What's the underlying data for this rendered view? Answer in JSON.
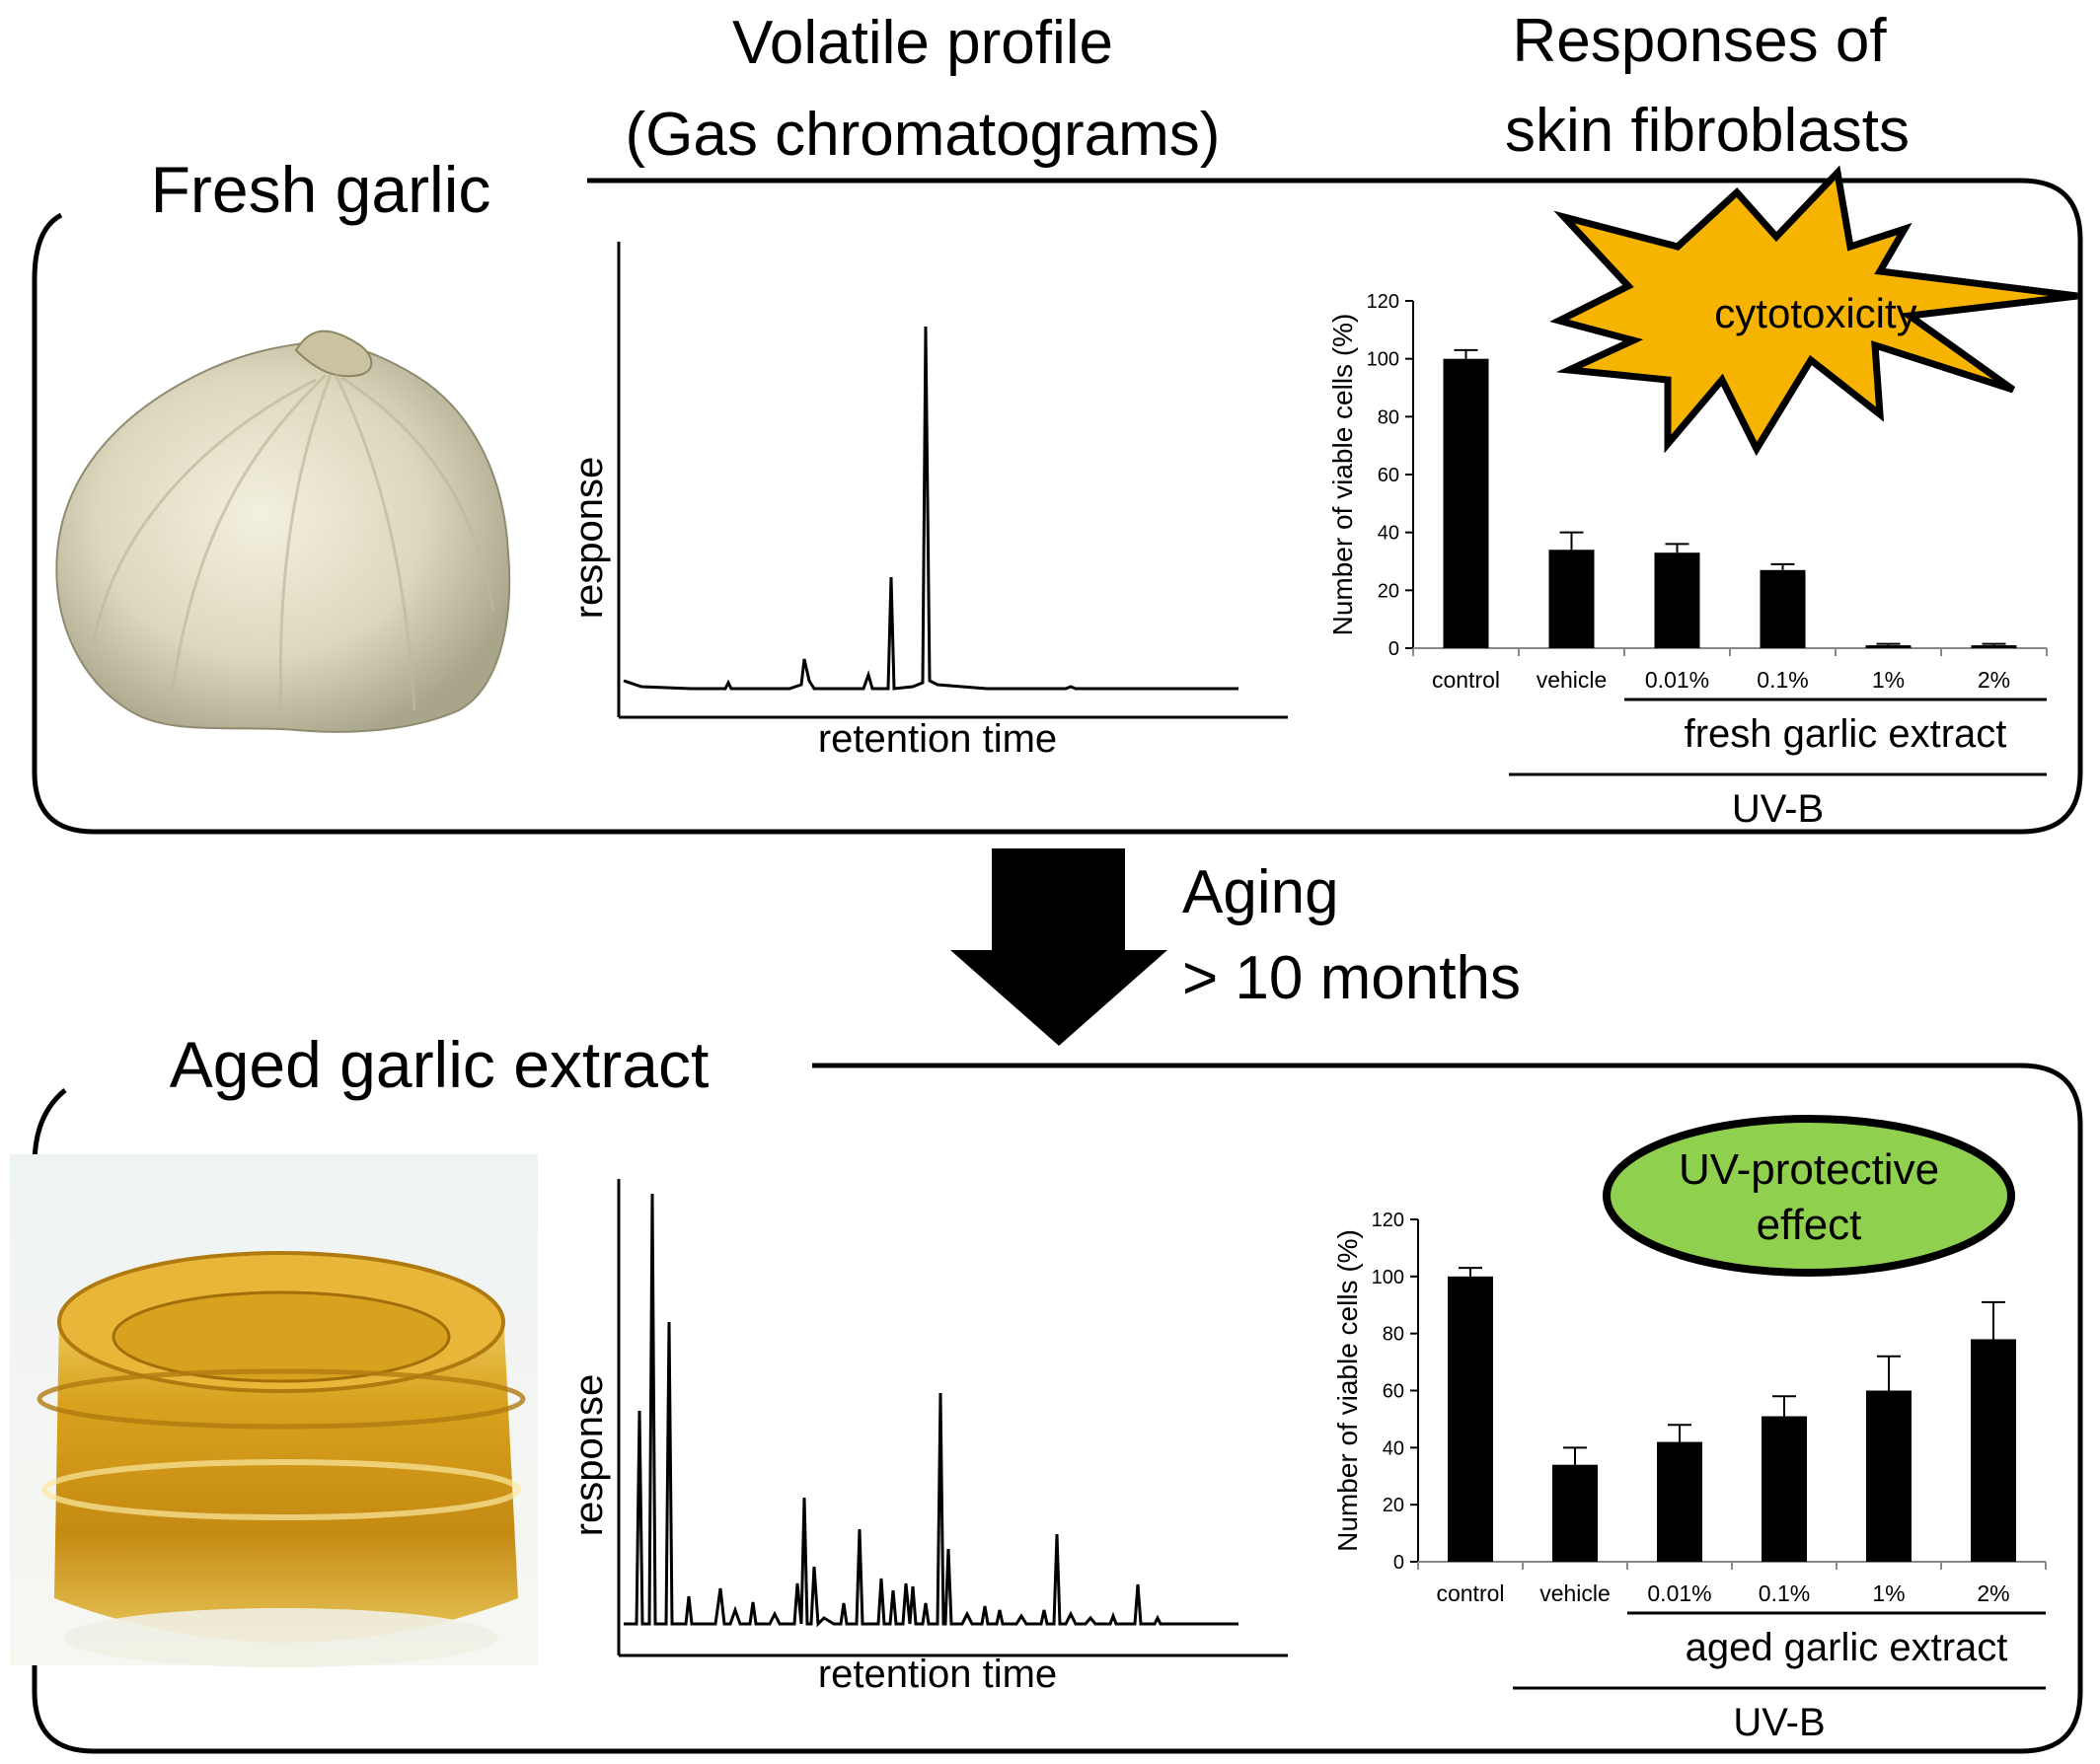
{
  "headers": {
    "volatile_line1": "Volatile profile",
    "volatile_line2": "(Gas chromatograms)",
    "responses_line1": "Responses of",
    "responses_line2": "skin fibroblasts"
  },
  "fresh_panel": {
    "title": "Fresh garlic",
    "gc": {
      "y_label": "response",
      "x_label": "retention time"
    },
    "badge": "cytotoxicity",
    "badge_color": "#f6b400"
  },
  "arrow": {
    "line1": "Aging",
    "line2": "> 10 months"
  },
  "aged_panel": {
    "title": "Aged garlic extract",
    "gc": {
      "y_label": "response",
      "x_label": "retention time"
    },
    "badge_line1": "UV-protective",
    "badge_line2": "effect",
    "badge_color": "#8fd14f"
  },
  "chart_data": [
    {
      "type": "bar",
      "categories": [
        "control",
        "vehicle",
        "0.01%",
        "0.1%",
        "1%",
        "2%"
      ],
      "values": [
        100,
        34,
        33,
        27,
        1,
        1
      ],
      "errors": [
        3,
        6,
        3,
        2,
        0.5,
        0.5
      ],
      "ylabel": "Number of viable cells (%)",
      "ylim": [
        0,
        120
      ],
      "yticks": [
        "0",
        "20",
        "40",
        "60",
        "80",
        "100",
        "120"
      ],
      "group_label": "fresh garlic extract",
      "treatment_label": "UV-B"
    },
    {
      "type": "bar",
      "categories": [
        "control",
        "vehicle",
        "0.01%",
        "0.1%",
        "1%",
        "2%"
      ],
      "values": [
        100,
        34,
        42,
        51,
        60,
        78
      ],
      "errors": [
        3,
        6,
        6,
        7,
        12,
        13
      ],
      "ylabel": "Number of viable cells (%)",
      "ylim": [
        0,
        120
      ],
      "yticks": [
        "0",
        "20",
        "40",
        "60",
        "80",
        "100",
        "120"
      ],
      "group_label": "aged garlic extract",
      "treatment_label": "UV-B"
    }
  ]
}
